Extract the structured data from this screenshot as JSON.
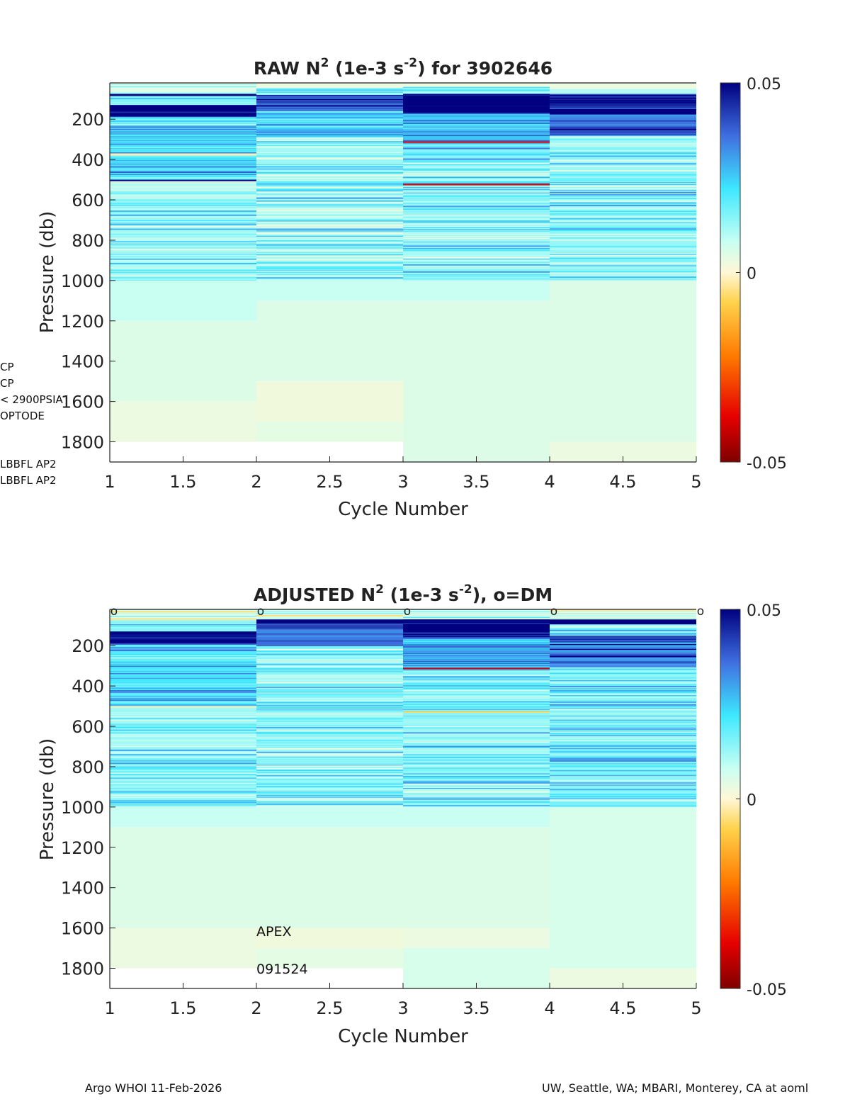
{
  "side_labels": [
    "CP",
    "CP",
    "< 2900PSIA",
    "OPTODE",
    "LBBFL AP2",
    "LBBFL AP2"
  ],
  "footer": {
    "left": "Argo WHOI 11-Feb-2026",
    "right": "UW, Seattle, WA; MBARI, Monterey, CA at aoml"
  },
  "notes": {
    "platform": "APEX",
    "serial": "091524"
  },
  "chart_data": [
    {
      "type": "heatmap",
      "title_main": "RAW N",
      "title_sup1": "2",
      "title_mid": " (1e-3 s",
      "title_sup2": "-2",
      "title_end": ") for 3902646",
      "xlabel": "Cycle Number",
      "ylabel": "Pressure (db)",
      "xlim": [
        1,
        5
      ],
      "ylim": [
        20,
        1900
      ],
      "xticks": [
        1,
        1.5,
        2,
        2.5,
        3,
        3.5,
        4,
        4.5,
        5
      ],
      "yticks": [
        200,
        400,
        600,
        800,
        1000,
        1200,
        1400,
        1600,
        1800
      ],
      "colorbar": {
        "min": -0.05,
        "max": 0.05,
        "ticks": [
          0.05,
          0,
          -0.05
        ]
      },
      "dm_markers": [],
      "cycles": [
        {
          "x0": 1,
          "x1": 2,
          "bottom": 1800,
          "seed": 11,
          "bands": [
            {
              "p0": 20,
              "p1": 75,
              "v": 0.004
            },
            {
              "p0": 75,
              "p1": 85,
              "v": 0.055
            },
            {
              "p0": 85,
              "p1": 130,
              "v": 0.015
            },
            {
              "p0": 130,
              "p1": 190,
              "v": 0.05
            },
            {
              "p0": 190,
              "p1": 370,
              "v": 0.02
            },
            {
              "p0": 370,
              "p1": 380,
              "v": -0.002
            },
            {
              "p0": 380,
              "p1": 500,
              "v": 0.02
            },
            {
              "p0": 500,
              "p1": 508,
              "v": 0.05
            },
            {
              "p0": 508,
              "p1": 1000,
              "v": 0.011
            },
            {
              "p0": 1000,
              "p1": 1200,
              "v": 0.008
            },
            {
              "p0": 1200,
              "p1": 1600,
              "v": 0.005
            },
            {
              "p0": 1600,
              "p1": 1800,
              "v": 0.003
            }
          ]
        },
        {
          "x0": 2,
          "x1": 3,
          "bottom": 1800,
          "seed": 23,
          "bands": [
            {
              "p0": 20,
              "p1": 45,
              "v": 0.003
            },
            {
              "p0": 45,
              "p1": 80,
              "v": 0.015
            },
            {
              "p0": 80,
              "p1": 160,
              "v": 0.04
            },
            {
              "p0": 160,
              "p1": 290,
              "v": 0.025
            },
            {
              "p0": 290,
              "p1": 1000,
              "v": 0.011
            },
            {
              "p0": 1000,
              "p1": 1100,
              "v": 0.008
            },
            {
              "p0": 1100,
              "p1": 1500,
              "v": 0.005
            },
            {
              "p0": 1500,
              "p1": 1700,
              "v": 0.002
            },
            {
              "p0": 1700,
              "p1": 1800,
              "v": 0.004
            }
          ]
        },
        {
          "x0": 3,
          "x1": 4,
          "bottom": 1900,
          "seed": 37,
          "bands": [
            {
              "p0": 20,
              "p1": 40,
              "v": 0.003
            },
            {
              "p0": 40,
              "p1": 75,
              "v": 0.015
            },
            {
              "p0": 75,
              "p1": 170,
              "v": 0.05
            },
            {
              "p0": 170,
              "p1": 310,
              "v": 0.025
            },
            {
              "p0": 310,
              "p1": 318,
              "v": -0.04
            },
            {
              "p0": 318,
              "p1": 520,
              "v": 0.015
            },
            {
              "p0": 520,
              "p1": 528,
              "v": -0.04
            },
            {
              "p0": 528,
              "p1": 1000,
              "v": 0.012
            },
            {
              "p0": 1000,
              "p1": 1100,
              "v": 0.008
            },
            {
              "p0": 1100,
              "p1": 1900,
              "v": 0.005
            }
          ]
        },
        {
          "x0": 4,
          "x1": 5,
          "bottom": 1900,
          "seed": 53,
          "bands": [
            {
              "p0": 20,
              "p1": 50,
              "v": 0.003
            },
            {
              "p0": 50,
              "p1": 75,
              "v": 0.01
            },
            {
              "p0": 75,
              "p1": 150,
              "v": 0.045
            },
            {
              "p0": 150,
              "p1": 175,
              "v": 0.055
            },
            {
              "p0": 175,
              "p1": 280,
              "v": 0.035
            },
            {
              "p0": 280,
              "p1": 1000,
              "v": 0.013
            },
            {
              "p0": 1000,
              "p1": 1800,
              "v": 0.005
            },
            {
              "p0": 1800,
              "p1": 1900,
              "v": 0.003
            }
          ]
        }
      ]
    },
    {
      "type": "heatmap",
      "title_main": "ADJUSTED N",
      "title_sup1": "2",
      "title_mid": " (1e-3 s",
      "title_sup2": "-2",
      "title_end": "), o=DM",
      "xlabel": "Cycle Number",
      "ylabel": "Pressure (db)",
      "xlim": [
        1,
        5
      ],
      "ylim": [
        20,
        1900
      ],
      "xticks": [
        1,
        1.5,
        2,
        2.5,
        3,
        3.5,
        4,
        4.5,
        5
      ],
      "yticks": [
        200,
        400,
        600,
        800,
        1000,
        1200,
        1400,
        1600,
        1800
      ],
      "colorbar": {
        "min": -0.05,
        "max": 0.05,
        "ticks": [
          0.05,
          0,
          -0.05
        ]
      },
      "dm_markers": [
        1,
        2,
        3,
        4,
        5
      ],
      "cycles": [
        {
          "x0": 1,
          "x1": 2,
          "bottom": 1800,
          "seed": 61,
          "bands": [
            {
              "p0": 20,
              "p1": 75,
              "v": 0.004
            },
            {
              "p0": 75,
              "p1": 130,
              "v": 0.015
            },
            {
              "p0": 130,
              "p1": 190,
              "v": 0.048
            },
            {
              "p0": 190,
              "p1": 370,
              "v": 0.02
            },
            {
              "p0": 370,
              "p1": 500,
              "v": 0.02
            },
            {
              "p0": 500,
              "p1": 508,
              "v": -0.002
            },
            {
              "p0": 508,
              "p1": 1000,
              "v": 0.012
            },
            {
              "p0": 1000,
              "p1": 1100,
              "v": 0.008
            },
            {
              "p0": 1100,
              "p1": 1600,
              "v": 0.005
            },
            {
              "p0": 1600,
              "p1": 1800,
              "v": 0.003
            }
          ]
        },
        {
          "x0": 2,
          "x1": 3,
          "bottom": 1800,
          "seed": 71,
          "bands": [
            {
              "p0": 20,
              "p1": 70,
              "v": 0.004
            },
            {
              "p0": 70,
              "p1": 90,
              "v": 0.055
            },
            {
              "p0": 90,
              "p1": 200,
              "v": 0.035
            },
            {
              "p0": 200,
              "p1": 1000,
              "v": 0.012
            },
            {
              "p0": 1000,
              "p1": 1100,
              "v": 0.008
            },
            {
              "p0": 1100,
              "p1": 1600,
              "v": 0.005
            },
            {
              "p0": 1600,
              "p1": 1700,
              "v": 0.002
            },
            {
              "p0": 1700,
              "p1": 1800,
              "v": 0.004
            }
          ]
        },
        {
          "x0": 3,
          "x1": 4,
          "bottom": 1900,
          "seed": 83,
          "bands": [
            {
              "p0": 20,
              "p1": 70,
              "v": 0.004
            },
            {
              "p0": 70,
              "p1": 160,
              "v": 0.05
            },
            {
              "p0": 160,
              "p1": 310,
              "v": 0.025
            },
            {
              "p0": 310,
              "p1": 318,
              "v": -0.04
            },
            {
              "p0": 318,
              "p1": 525,
              "v": 0.015
            },
            {
              "p0": 525,
              "p1": 532,
              "v": -0.01
            },
            {
              "p0": 532,
              "p1": 1000,
              "v": 0.013
            },
            {
              "p0": 1000,
              "p1": 1100,
              "v": 0.008
            },
            {
              "p0": 1100,
              "p1": 1600,
              "v": 0.005
            },
            {
              "p0": 1600,
              "p1": 1700,
              "v": 0.003
            },
            {
              "p0": 1700,
              "p1": 1900,
              "v": 0.006
            }
          ]
        },
        {
          "x0": 4,
          "x1": 5,
          "bottom": 1900,
          "seed": 97,
          "bands": [
            {
              "p0": 20,
              "p1": 70,
              "v": 0.004
            },
            {
              "p0": 70,
              "p1": 95,
              "v": 0.055
            },
            {
              "p0": 95,
              "p1": 150,
              "v": 0.015
            },
            {
              "p0": 150,
              "p1": 300,
              "v": 0.035
            },
            {
              "p0": 300,
              "p1": 1000,
              "v": 0.014
            },
            {
              "p0": 1000,
              "p1": 1800,
              "v": 0.006
            },
            {
              "p0": 1800,
              "p1": 1900,
              "v": 0.003
            }
          ]
        }
      ]
    }
  ]
}
